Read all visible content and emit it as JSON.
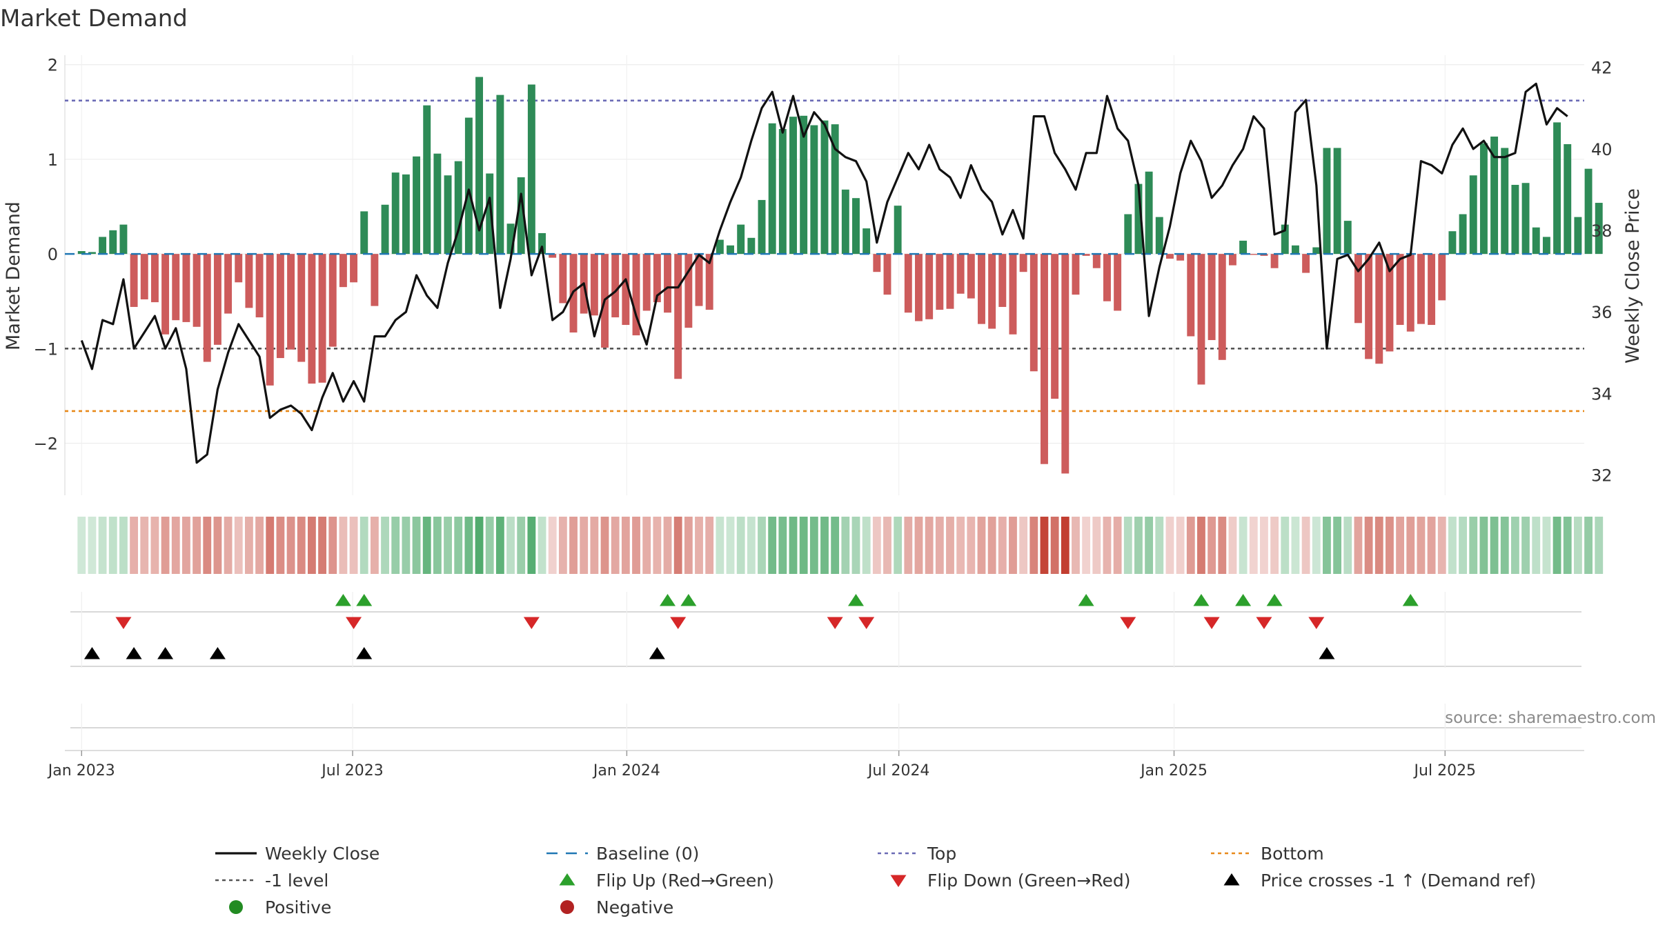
{
  "chart_data": {
    "type": "bar+line",
    "title": "Market Demand",
    "ylabel": "Market Demand",
    "y2label": "Weekly Close Price",
    "ylim": [
      -2.55,
      2.1
    ],
    "y2lim": [
      31.5,
      42.3
    ],
    "yticks": [
      -2,
      -1,
      0,
      1,
      2
    ],
    "yticklabels": [
      "−2",
      "−1",
      "0",
      "1",
      "2"
    ],
    "y2ticks": [
      32,
      34,
      36,
      38,
      40,
      42
    ],
    "x_range_weeks": [
      -1.6,
      143.6
    ],
    "x_start_week_label": "week 0 = 2023-01-02",
    "xticks": [
      {
        "label": "Jan 2023",
        "week": 0
      },
      {
        "label": "Jul 2023",
        "week": 25.9
      },
      {
        "label": "Jan 2024",
        "week": 52.1
      },
      {
        "label": "Jul 2024",
        "week": 78.1
      },
      {
        "label": "Jan 2025",
        "week": 104.4
      },
      {
        "label": "Jul 2025",
        "week": 130.3
      }
    ],
    "reference_lines": {
      "top": 1.62,
      "minus1": -1.0,
      "bottom": -1.66,
      "baseline": 0
    },
    "colors": {
      "positive": "#2e8b57",
      "negative": "#cd5c5c",
      "close": "#111111",
      "top": "#6a6ab5",
      "minus1": "#555555",
      "bottom": "#e8891a",
      "baseline": "#1f77b4",
      "flip_up": "#2ca02c",
      "flip_down": "#d62728",
      "cross": "#000000",
      "heat_pos": "#2e9a50",
      "heat_neg": "#c0392b"
    },
    "demand": [
      0.03,
      0.02,
      0.18,
      0.25,
      0.31,
      -0.56,
      -0.48,
      -0.51,
      -0.85,
      -0.7,
      -0.72,
      -0.77,
      -1.14,
      -0.96,
      -0.63,
      -0.3,
      -0.57,
      -0.67,
      -1.39,
      -1.1,
      -1.01,
      -1.14,
      -1.37,
      -1.36,
      -0.98,
      -0.35,
      -0.3,
      0.45,
      -0.55,
      0.52,
      0.86,
      0.84,
      1.03,
      1.57,
      1.06,
      0.83,
      0.98,
      1.44,
      1.87,
      0.85,
      1.68,
      0.32,
      0.81,
      1.79,
      0.22,
      -0.04,
      -0.52,
      -0.83,
      -0.63,
      -0.65,
      -0.99,
      -0.67,
      -0.75,
      -0.86,
      -0.6,
      -0.51,
      -0.62,
      -1.32,
      -0.78,
      -0.55,
      -0.59,
      0.15,
      0.09,
      0.31,
      0.17,
      0.57,
      1.38,
      1.32,
      1.45,
      1.46,
      1.36,
      1.41,
      1.37,
      0.68,
      0.59,
      0.27,
      -0.19,
      -0.43,
      0.51,
      -0.62,
      -0.71,
      -0.69,
      -0.59,
      -0.58,
      -0.42,
      -0.47,
      -0.74,
      -0.79,
      -0.56,
      -0.85,
      -0.19,
      -1.24,
      -2.22,
      -1.53,
      -2.32,
      -0.43,
      -0.02,
      -0.15,
      -0.5,
      -0.6,
      0.42,
      0.74,
      0.87,
      0.39,
      -0.05,
      -0.07,
      -0.87,
      -1.38,
      -0.91,
      -1.12,
      -0.12,
      0.14,
      -0.01,
      -0.02,
      -0.15,
      0.31,
      0.09,
      -0.2,
      0.07,
      1.12,
      1.12,
      0.35,
      -0.73,
      -1.11,
      -1.16,
      -1.03,
      -0.75,
      -0.82,
      -0.74,
      -0.75,
      -0.49,
      0.24,
      0.42,
      0.83,
      1.17,
      1.24,
      1.12,
      0.73,
      0.75,
      0.28,
      0.18,
      1.39,
      1.16,
      0.39,
      0.9,
      0.54
    ],
    "weekly_close": [
      35.3,
      34.6,
      35.8,
      35.7,
      36.8,
      35.1,
      35.5,
      35.9,
      35.1,
      35.6,
      34.6,
      32.3,
      32.5,
      34.1,
      35.0,
      35.7,
      35.3,
      34.9,
      33.4,
      33.6,
      33.7,
      33.5,
      33.1,
      33.9,
      34.5,
      33.8,
      34.3,
      33.8,
      35.4,
      35.4,
      35.8,
      36.0,
      36.9,
      36.4,
      36.1,
      37.2,
      38.0,
      39.0,
      38.0,
      38.8,
      36.1,
      37.3,
      38.9,
      36.9,
      37.6,
      35.8,
      36.0,
      36.5,
      36.7,
      35.4,
      36.3,
      36.5,
      36.8,
      35.9,
      35.2,
      36.4,
      36.6,
      36.6,
      37.0,
      37.4,
      37.2,
      38.0,
      38.7,
      39.3,
      40.2,
      41.0,
      41.4,
      40.4,
      41.3,
      40.3,
      40.9,
      40.6,
      40.0,
      39.8,
      39.7,
      39.2,
      37.7,
      38.7,
      39.3,
      39.9,
      39.5,
      40.1,
      39.5,
      39.3,
      38.8,
      39.6,
      39.0,
      38.7,
      37.9,
      38.5,
      37.8,
      40.8,
      40.8,
      39.9,
      39.5,
      39.0,
      39.9,
      39.9,
      41.3,
      40.5,
      40.2,
      39.1,
      35.9,
      37.1,
      38.1,
      39.4,
      40.2,
      39.7,
      38.8,
      39.1,
      39.6,
      40.0,
      40.8,
      40.5,
      37.9,
      38.0,
      40.9,
      41.2,
      39.1,
      35.1,
      37.3,
      37.4,
      37.0,
      37.3,
      37.7,
      37.0,
      37.3,
      37.4,
      39.7,
      39.6,
      39.4,
      40.1,
      40.5,
      40.0,
      40.2,
      39.8,
      39.8,
      39.9,
      41.4,
      41.6,
      40.6,
      41.0,
      40.8
    ],
    "flip_up_weeks": [
      25,
      27,
      56,
      58,
      74,
      96,
      107,
      111,
      114,
      127
    ],
    "flip_down_weeks": [
      4,
      26,
      43,
      57,
      72,
      75,
      100,
      108,
      113,
      118
    ],
    "cross_minus1_up_weeks": [
      1,
      5,
      8,
      13,
      27,
      55,
      119
    ],
    "source": "source: sharemaestro.com",
    "legend": [
      {
        "label": "Weekly Close",
        "kind": "line-solid",
        "color": "#111111"
      },
      {
        "label": "Baseline (0)",
        "kind": "line-dash",
        "color": "#1f77b4"
      },
      {
        "label": "Top",
        "kind": "line-dot",
        "color": "#6a6ab5"
      },
      {
        "label": "Bottom",
        "kind": "line-dot",
        "color": "#e8891a"
      },
      {
        "label": "-1 level",
        "kind": "line-dot",
        "color": "#555555"
      },
      {
        "label": "Flip Up (Red→Green)",
        "kind": "tri-up",
        "color": "#2ca02c"
      },
      {
        "label": "Flip Down (Green→Red)",
        "kind": "tri-down",
        "color": "#d62728"
      },
      {
        "label": "Price crosses -1 ↑ (Demand ref)",
        "kind": "tri-up",
        "color": "#000000"
      },
      {
        "label": "Positive",
        "kind": "dot",
        "color": "#228b22"
      },
      {
        "label": "Negative",
        "kind": "dot",
        "color": "#b22222"
      }
    ]
  }
}
